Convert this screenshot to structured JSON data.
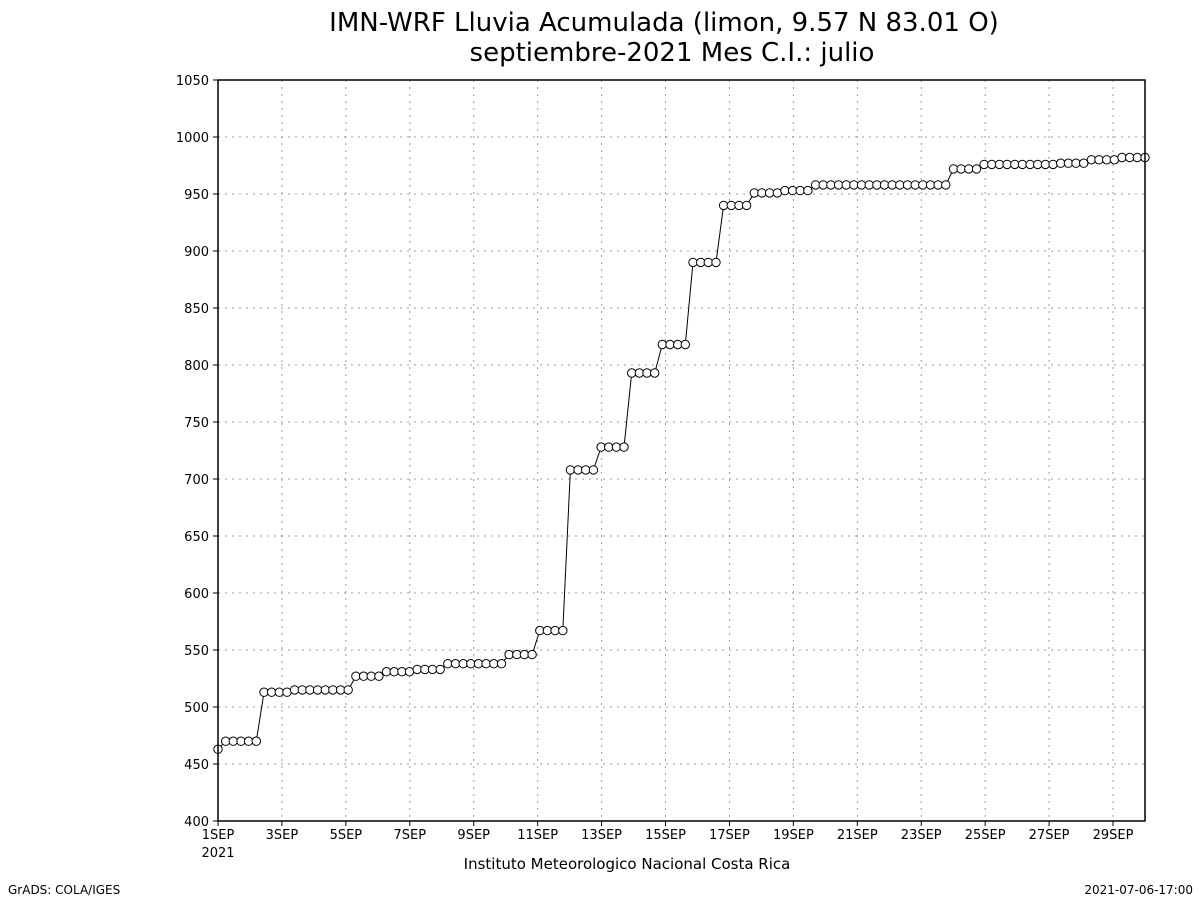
{
  "chart_data": {
    "type": "line",
    "title": "IMN-WRF  Lluvia Acumulada (limon, 9.57  N 83.01  O)",
    "subtitle": "septiembre-2021 Mes C.I.: julio",
    "xlabel": "Instituto Meteorologico Nacional Costa Rica",
    "ylabel": "",
    "ylim": [
      400,
      1050
    ],
    "yticks": [
      400,
      450,
      500,
      550,
      600,
      650,
      700,
      750,
      800,
      850,
      900,
      950,
      1000,
      1050
    ],
    "xlim": [
      1,
      30
    ],
    "xtick_labels": [
      {
        "day": 1,
        "label": "1SEP",
        "sublabel": "2021"
      },
      {
        "day": 3,
        "label": "3SEP"
      },
      {
        "day": 5,
        "label": "5SEP"
      },
      {
        "day": 7,
        "label": "7SEP"
      },
      {
        "day": 9,
        "label": "9SEP"
      },
      {
        "day": 11,
        "label": "11SEP"
      },
      {
        "day": 13,
        "label": "13SEP"
      },
      {
        "day": 15,
        "label": "15SEP"
      },
      {
        "day": 17,
        "label": "17SEP"
      },
      {
        "day": 19,
        "label": "19SEP"
      },
      {
        "day": 21,
        "label": "21SEP"
      },
      {
        "day": 23,
        "label": "23SEP"
      },
      {
        "day": 25,
        "label": "25SEP"
      },
      {
        "day": 27,
        "label": "27SEP"
      },
      {
        "day": 29,
        "label": "29SEP"
      }
    ],
    "grid": true,
    "marker": "open-circle",
    "series": [
      {
        "values": [
          463,
          470,
          470,
          470,
          470,
          470,
          513,
          513,
          513,
          513,
          515,
          515,
          515,
          515,
          515,
          515,
          515,
          515,
          527,
          527,
          527,
          527,
          531,
          531,
          531,
          531,
          533,
          533,
          533,
          533,
          538,
          538,
          538,
          538,
          538,
          538,
          538,
          538,
          546,
          546,
          546,
          546,
          567,
          567,
          567,
          567,
          708,
          708,
          708,
          708,
          728,
          728,
          728,
          728,
          793,
          793,
          793,
          793,
          818,
          818,
          818,
          818,
          890,
          890,
          890,
          890,
          940,
          940,
          940,
          940,
          951,
          951,
          951,
          951,
          953,
          953,
          953,
          953,
          958,
          958,
          958,
          958,
          958,
          958,
          958,
          958,
          958,
          958,
          958,
          958,
          958,
          958,
          958,
          958,
          958,
          958,
          972,
          972,
          972,
          972,
          976,
          976,
          976,
          976,
          976,
          976,
          976,
          976,
          976,
          976,
          977,
          977,
          977,
          977,
          980,
          980,
          980,
          980,
          982,
          982,
          982,
          982
        ]
      }
    ]
  },
  "footer": {
    "left": "GrADS: COLA/IGES",
    "right": "2021-07-06-17:00"
  }
}
